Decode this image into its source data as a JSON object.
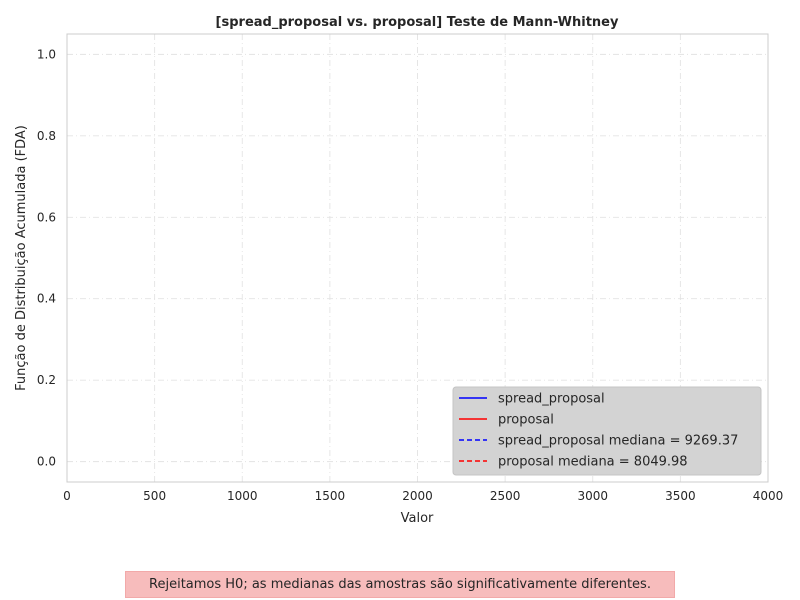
{
  "chart_data": {
    "type": "line",
    "title": "[spread_proposal vs. proposal] Teste de Mann-Whitney",
    "xlabel": "Valor",
    "ylabel": "Função de Distribuição Acumulada (FDA)",
    "xlim": [
      0,
      4000
    ],
    "ylim": [
      -0.05,
      1.05
    ],
    "xticks": [
      0,
      500,
      1000,
      1500,
      2000,
      2500,
      3000,
      3500,
      4000
    ],
    "yticks": [
      0.0,
      0.2,
      0.4,
      0.6,
      0.8,
      1.0
    ],
    "xtick_labels": [
      "0",
      "500",
      "1000",
      "1500",
      "2000",
      "2500",
      "3000",
      "3500",
      "4000"
    ],
    "ytick_labels": [
      "0.0",
      "0.2",
      "0.4",
      "0.6",
      "0.8",
      "1.0"
    ],
    "grid": true,
    "legend_position": "bottom-right",
    "series": [
      {
        "name": "spread_proposal",
        "style": "solid",
        "color": "#0000ff",
        "values": []
      },
      {
        "name": "proposal",
        "style": "solid",
        "color": "#ff0000",
        "values": []
      }
    ],
    "reference_lines": [
      {
        "name": "spread_proposal mediana = 9269.37",
        "style": "dashed",
        "color": "#0000ff",
        "x": 9269.37
      },
      {
        "name": "proposal mediana = 8049.98",
        "style": "dashed",
        "color": "#ff0000",
        "x": 8049.98
      }
    ]
  },
  "note": {
    "text": "Rejeitamos H0; as medianas das amostras são significativamente diferentes.",
    "background": "#f7bcbc"
  }
}
